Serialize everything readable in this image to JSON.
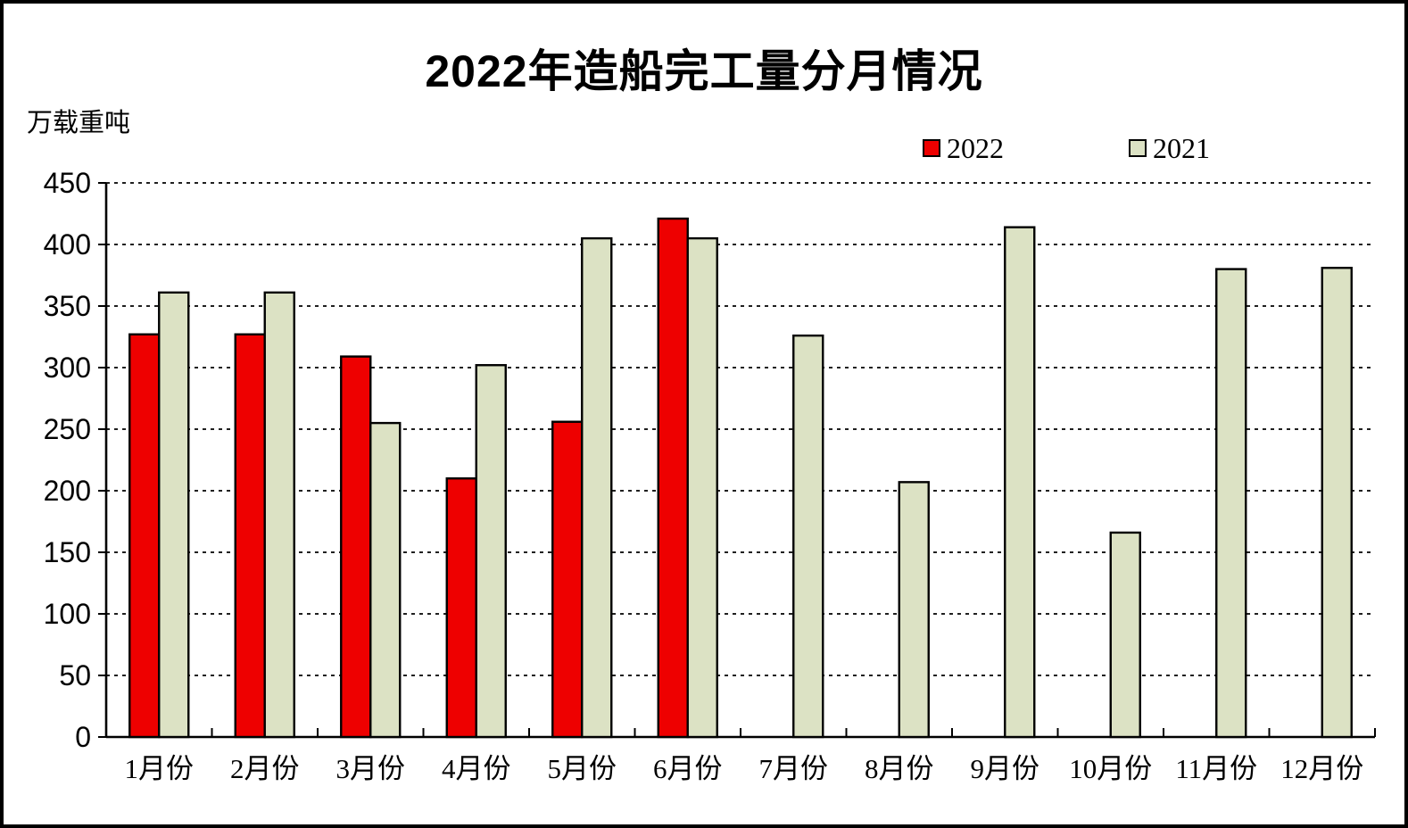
{
  "title": "2022年造船完工量分月情况",
  "unit_label": "万载重吨",
  "legend": {
    "items": [
      {
        "label": "2022",
        "color": "#ee0000"
      },
      {
        "label": "2021",
        "color": "#dce2c4"
      }
    ]
  },
  "chart_data": {
    "type": "bar",
    "title": "2022年造船完工量分月情况",
    "ylabel": "万载重吨",
    "xlabel": "",
    "categories": [
      "1月份",
      "2月份",
      "3月份",
      "4月份",
      "5月份",
      "6月份",
      "7月份",
      "8月份",
      "9月份",
      "10月份",
      "11月份",
      "12月份"
    ],
    "series": [
      {
        "name": "2022",
        "color": "#ee0000",
        "values": [
          327,
          327,
          309,
          210,
          256,
          421,
          null,
          null,
          null,
          null,
          null,
          null
        ]
      },
      {
        "name": "2021",
        "color": "#dce2c4",
        "values": [
          361,
          361,
          255,
          302,
          405,
          405,
          326,
          207,
          414,
          166,
          380,
          381
        ]
      }
    ],
    "ylim": [
      0,
      450
    ],
    "ytick_step": 50,
    "yticks": [
      0,
      50,
      100,
      150,
      200,
      250,
      300,
      350,
      400,
      450
    ],
    "grid": true,
    "gridline_style": "dashed",
    "bar_border_color": "#000000",
    "legend_position": "top-right"
  }
}
